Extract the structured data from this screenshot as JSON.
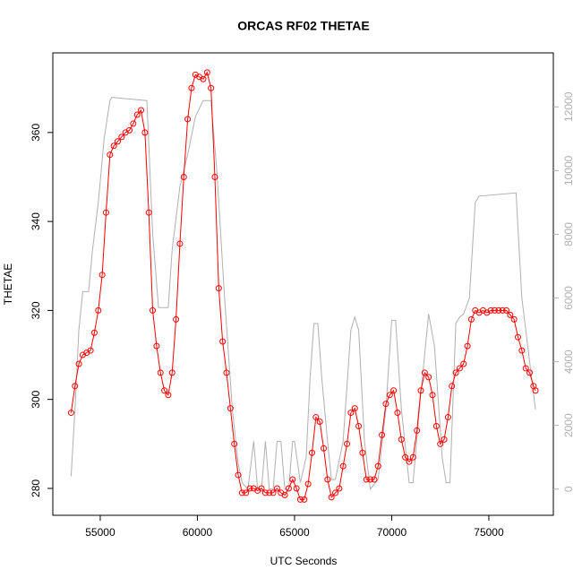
{
  "chart_data": {
    "type": "line",
    "title": "ORCAS RF02 THETAE",
    "x_label": "UTC Seconds",
    "y_label": "THETAE",
    "xlim": [
      52560,
      78320
    ],
    "xticks": [
      55000,
      60000,
      65000,
      70000,
      75000
    ],
    "ylim": [
      273.95,
      377.9
    ],
    "yticks": [
      280,
      300,
      320,
      340,
      360
    ],
    "y2lim": [
      -823,
      13697
    ],
    "y2ticks": [
      0,
      2000,
      4000,
      6000,
      8000,
      10000,
      12000
    ],
    "series": [
      {
        "color": "#ff0000",
        "markers": true,
        "x": [
          53500,
          53700,
          53900,
          54100,
          54300,
          54500,
          54700,
          54900,
          55100,
          55300,
          55500,
          55700,
          55900,
          56100,
          56300,
          56500,
          56700,
          56900,
          57100,
          57300,
          57500,
          57700,
          57900,
          58100,
          58300,
          58500,
          58700,
          58900,
          59100,
          59300,
          59500,
          59700,
          59900,
          60100,
          60300,
          60500,
          60700,
          60900,
          61100,
          61300,
          61500,
          61700,
          61900,
          62100,
          62300,
          62500,
          62700,
          62900,
          63100,
          63300,
          63500,
          63700,
          63900,
          64100,
          64300,
          64500,
          64700,
          64900,
          65100,
          65300,
          65500,
          65700,
          65900,
          66100,
          66300,
          66500,
          66700,
          66900,
          67100,
          67300,
          67500,
          67700,
          67900,
          68100,
          68300,
          68500,
          68700,
          68900,
          69100,
          69300,
          69500,
          69700,
          69900,
          70100,
          70300,
          70500,
          70700,
          70900,
          71100,
          71300,
          71500,
          71700,
          71900,
          72100,
          72300,
          72500,
          72700,
          72900,
          73100,
          73300,
          73500,
          73700,
          73900,
          74100,
          74300,
          74500,
          74700,
          74900,
          75100,
          75300,
          75500,
          75700,
          75900,
          76100,
          76300,
          76500,
          76700,
          76900,
          77100,
          77300,
          77400
        ],
        "values": [
          297,
          303,
          308,
          310,
          310.5,
          311,
          315,
          320,
          328,
          342,
          355,
          357,
          358,
          359,
          360,
          360.5,
          362,
          364,
          365,
          360,
          342,
          320,
          312,
          306,
          302,
          301,
          306,
          318,
          335,
          350,
          363,
          370,
          373,
          372.5,
          372,
          373.5,
          370,
          350,
          325,
          313,
          306,
          298,
          290,
          283,
          279,
          279,
          280,
          280,
          279.5,
          280,
          279,
          279,
          279,
          280,
          279,
          278.5,
          280,
          282,
          280,
          277.5,
          277.5,
          281,
          288,
          296,
          295,
          289,
          282,
          278,
          279,
          280,
          285,
          290,
          297,
          298,
          294,
          288,
          282,
          282,
          282,
          285,
          292,
          299,
          301,
          302,
          297,
          291,
          287,
          286,
          287,
          293,
          302,
          306,
          305,
          301,
          294,
          290,
          291,
          296,
          303,
          306,
          307,
          308,
          312,
          318,
          320,
          319.5,
          320,
          319.5,
          320,
          320,
          320,
          320,
          320,
          319,
          318,
          314,
          311,
          307,
          306,
          303,
          302
        ]
      },
      {
        "color": "#b0b0b0",
        "axis": "y2",
        "markers": false,
        "x": [
          53500,
          53700,
          53900,
          54100,
          54400,
          54600,
          54900,
          55200,
          55500,
          55600,
          57400,
          57700,
          58000,
          58300,
          58500,
          58700,
          59100,
          59500,
          59900,
          60300,
          60700,
          61000,
          61400,
          61800,
          62100,
          62300,
          62600,
          62900,
          63100,
          63300,
          63500,
          63700,
          63900,
          64100,
          64300,
          64500,
          64700,
          64900,
          65000,
          65300,
          65600,
          65800,
          66000,
          66200,
          66400,
          66700,
          66900,
          67100,
          67500,
          67900,
          68100,
          68300,
          68600,
          68900,
          69300,
          69700,
          70000,
          70200,
          70500,
          70900,
          71100,
          71500,
          71900,
          72200,
          72600,
          72800,
          73000,
          73300,
          73500,
          73700,
          74000,
          74300,
          74500,
          76400,
          76700,
          77000,
          77400
        ],
        "values": [
          400,
          2500,
          5000,
          6200,
          6200,
          7500,
          9000,
          11000,
          12200,
          12300,
          12200,
          8000,
          5700,
          5700,
          5700,
          7500,
          9500,
          10500,
          11700,
          12200,
          12200,
          10000,
          6000,
          2500,
          800,
          200,
          0,
          1500,
          0,
          0,
          1500,
          0,
          0,
          1500,
          1500,
          0,
          0,
          1500,
          1500,
          200,
          1000,
          3500,
          5200,
          5200,
          3500,
          1500,
          300,
          300,
          1500,
          5000,
          5400,
          5000,
          1500,
          0,
          300,
          2500,
          5300,
          5300,
          2500,
          200,
          200,
          3000,
          5500,
          4500,
          1000,
          200,
          200,
          5200,
          5400,
          5500,
          6000,
          9000,
          9200,
          9300,
          6000,
          4500,
          2500
        ]
      }
    ]
  }
}
